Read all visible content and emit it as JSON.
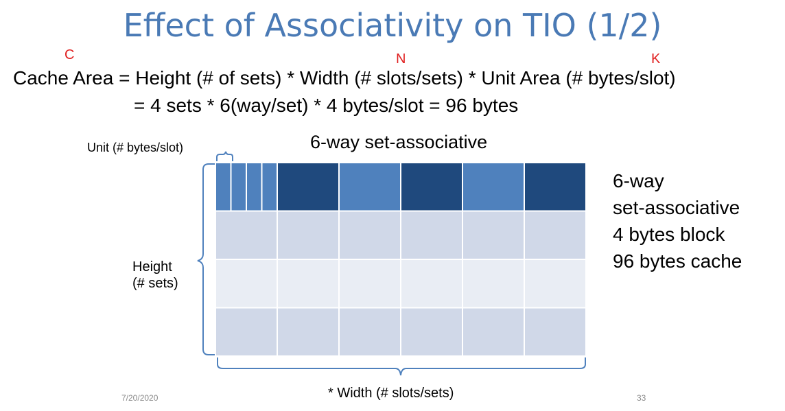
{
  "slide": {
    "title": "Effect of Associativity on TIO (1/2)",
    "var_c": "C",
    "var_n": "N",
    "var_k": "K",
    "formula_line1": "Cache Area = Height (# of sets) * Width (# slots/sets) * Unit Area (# bytes/slot)",
    "formula_line2": "= 4 sets * 6(way/set) * 4 bytes/slot = 96 bytes",
    "diagram_title": "6-way set-associative",
    "unit_label": "Unit (# bytes/slot)",
    "height_label_line1": "Height",
    "height_label_line2": "(# sets)",
    "width_label": "* Width (# slots/sets)",
    "side_lines": [
      "6-way",
      "set-associative",
      "4 bytes block",
      "96 bytes cache"
    ],
    "date": "7/20/2020",
    "page_number": "33"
  },
  "diagram": {
    "sets": 4,
    "ways": 6,
    "bytes_per_slot": 4,
    "colors": {
      "dark_blue": "#1f497d",
      "mid_blue": "#4f81bd",
      "row_light_a": "#d0d8e8",
      "row_light_b": "#e9edf4",
      "bracket": "#4f81bd"
    }
  }
}
